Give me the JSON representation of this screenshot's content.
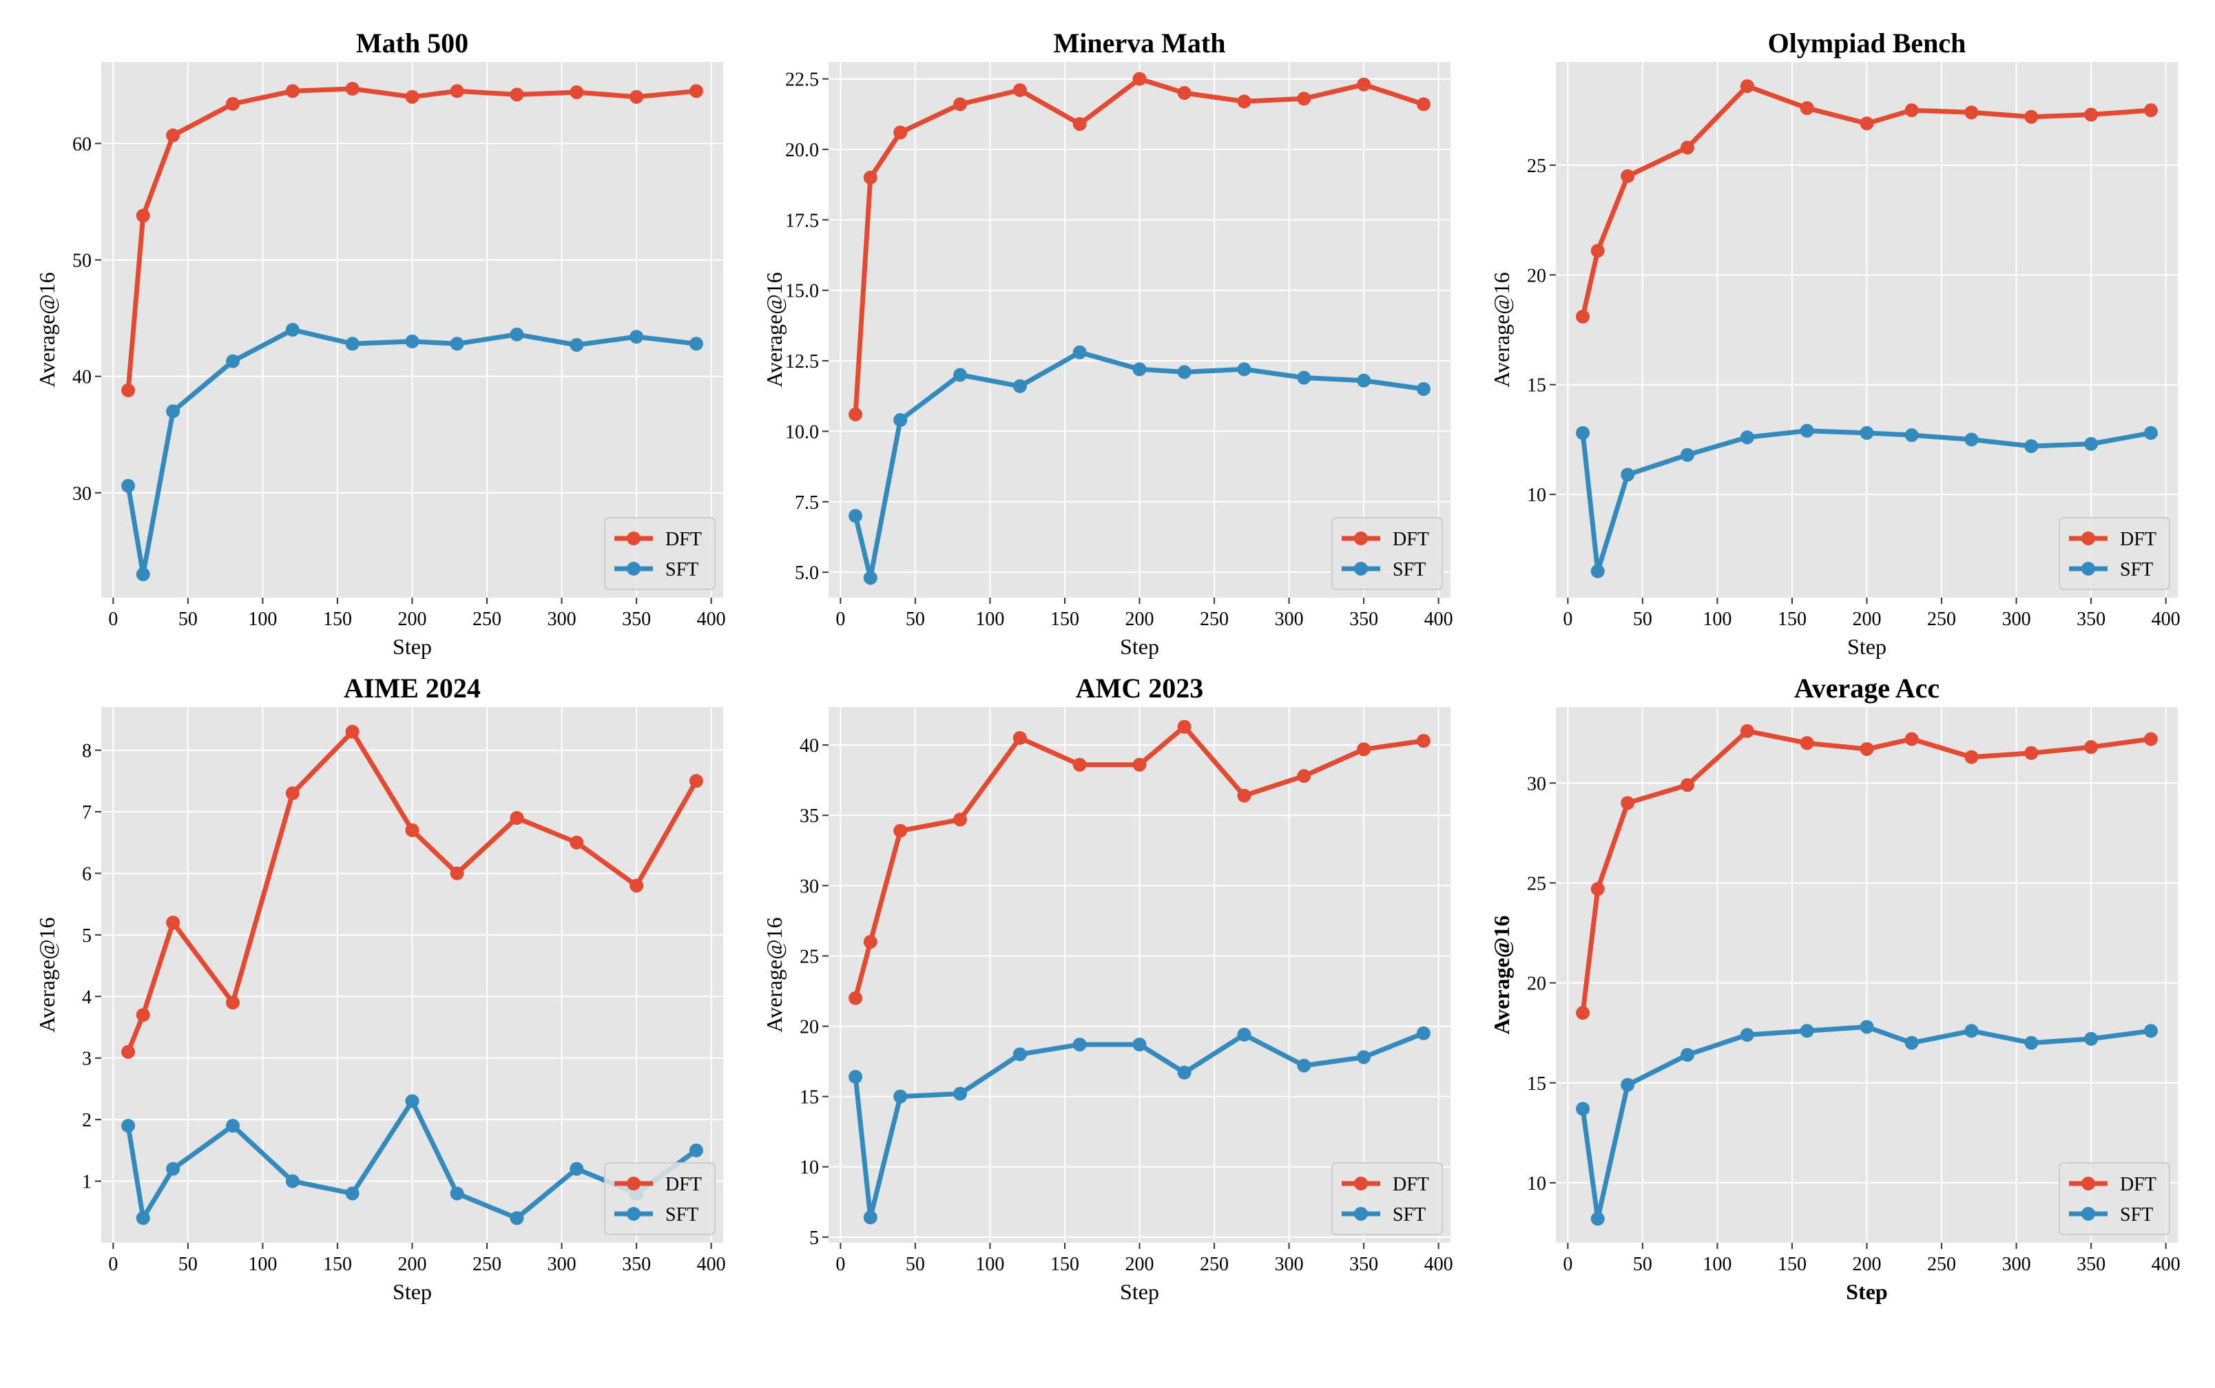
{
  "chart_data": [
    {
      "type": "line",
      "title": "Math 500",
      "xlabel": "Step",
      "ylabel": "Average@16",
      "xlim": [
        -8,
        408
      ],
      "ylim": [
        21,
        67
      ],
      "xticks": [
        0,
        50,
        100,
        150,
        200,
        250,
        300,
        350,
        400
      ],
      "yticks": [
        30,
        40,
        50,
        60
      ],
      "ytick_labels": [
        "30",
        "40",
        "50",
        "60"
      ],
      "grid": true,
      "legend_position": "lower-right",
      "bold_axis_labels": false,
      "x": [
        10,
        20,
        40,
        80,
        120,
        160,
        200,
        230,
        270,
        310,
        350,
        390
      ],
      "series": [
        {
          "name": "DFT",
          "color": "#E24A33",
          "values": [
            38.8,
            53.8,
            60.7,
            63.4,
            64.5,
            64.7,
            64.0,
            64.5,
            64.2,
            64.4,
            64.0,
            64.5
          ]
        },
        {
          "name": "SFT",
          "color": "#348ABD",
          "values": [
            30.6,
            23.0,
            37.0,
            41.3,
            44.0,
            42.8,
            43.0,
            42.8,
            43.6,
            42.7,
            43.4,
            42.8
          ]
        }
      ]
    },
    {
      "type": "line",
      "title": "Minerva Math",
      "xlabel": "Step",
      "ylabel": "Average@16",
      "xlim": [
        -8,
        408
      ],
      "ylim": [
        4.1,
        23.1
      ],
      "xticks": [
        0,
        50,
        100,
        150,
        200,
        250,
        300,
        350,
        400
      ],
      "yticks": [
        5.0,
        7.5,
        10.0,
        12.5,
        15.0,
        17.5,
        20.0,
        22.5
      ],
      "ytick_labels": [
        "5.0",
        "7.5",
        "10.0",
        "12.5",
        "15.0",
        "17.5",
        "20.0",
        "22.5"
      ],
      "grid": true,
      "legend_position": "lower-right",
      "bold_axis_labels": false,
      "x": [
        10,
        20,
        40,
        80,
        120,
        160,
        200,
        230,
        270,
        310,
        350,
        390
      ],
      "series": [
        {
          "name": "DFT",
          "color": "#E24A33",
          "values": [
            10.6,
            19.0,
            20.6,
            21.6,
            22.1,
            20.9,
            22.5,
            22.0,
            21.7,
            21.8,
            22.3,
            21.6
          ]
        },
        {
          "name": "SFT",
          "color": "#348ABD",
          "values": [
            7.0,
            4.8,
            10.4,
            12.0,
            11.6,
            12.8,
            12.2,
            12.1,
            12.2,
            11.9,
            11.8,
            11.5
          ]
        }
      ]
    },
    {
      "type": "line",
      "title": "Olympiad Bench",
      "xlabel": "Step",
      "ylabel": "Average@16",
      "xlim": [
        -8,
        408
      ],
      "ylim": [
        5.3,
        29.7
      ],
      "xticks": [
        0,
        50,
        100,
        150,
        200,
        250,
        300,
        350,
        400
      ],
      "yticks": [
        10,
        15,
        20,
        25
      ],
      "ytick_labels": [
        "10",
        "15",
        "20",
        "25"
      ],
      "grid": true,
      "legend_position": "lower-right",
      "bold_axis_labels": false,
      "x": [
        10,
        20,
        40,
        80,
        120,
        160,
        200,
        230,
        270,
        310,
        350,
        390
      ],
      "series": [
        {
          "name": "DFT",
          "color": "#E24A33",
          "values": [
            18.1,
            21.1,
            24.5,
            25.8,
            28.6,
            27.6,
            26.9,
            27.5,
            27.4,
            27.2,
            27.3,
            27.5
          ]
        },
        {
          "name": "SFT",
          "color": "#348ABD",
          "values": [
            12.8,
            6.5,
            10.9,
            11.8,
            12.6,
            12.9,
            12.8,
            12.7,
            12.5,
            12.2,
            12.3,
            12.8
          ]
        }
      ]
    },
    {
      "type": "line",
      "title": "AIME 2024",
      "xlabel": "Step",
      "ylabel": "Average@16",
      "xlim": [
        -8,
        408
      ],
      "ylim": [
        0.0,
        8.7
      ],
      "xticks": [
        0,
        50,
        100,
        150,
        200,
        250,
        300,
        350,
        400
      ],
      "yticks": [
        1,
        2,
        3,
        4,
        5,
        6,
        7,
        8
      ],
      "ytick_labels": [
        "1",
        "2",
        "3",
        "4",
        "5",
        "6",
        "7",
        "8"
      ],
      "grid": true,
      "legend_position": "lower-right",
      "bold_axis_labels": false,
      "x": [
        10,
        20,
        40,
        80,
        120,
        160,
        200,
        230,
        270,
        310,
        350,
        390
      ],
      "series": [
        {
          "name": "DFT",
          "color": "#E24A33",
          "values": [
            3.1,
            3.7,
            5.2,
            3.9,
            7.3,
            8.3,
            6.7,
            6.0,
            6.9,
            6.5,
            5.8,
            7.5
          ]
        },
        {
          "name": "SFT",
          "color": "#348ABD",
          "values": [
            1.9,
            0.4,
            1.2,
            1.9,
            1.0,
            0.8,
            2.3,
            0.8,
            0.4,
            1.2,
            0.8,
            1.5
          ]
        }
      ]
    },
    {
      "type": "line",
      "title": "AMC 2023",
      "xlabel": "Step",
      "ylabel": "Average@16",
      "xlim": [
        -8,
        408
      ],
      "ylim": [
        4.6,
        42.7
      ],
      "xticks": [
        0,
        50,
        100,
        150,
        200,
        250,
        300,
        350,
        400
      ],
      "yticks": [
        5,
        10,
        15,
        20,
        25,
        30,
        35,
        40
      ],
      "ytick_labels": [
        "5",
        "10",
        "15",
        "20",
        "25",
        "30",
        "35",
        "40"
      ],
      "grid": true,
      "legend_position": "lower-right",
      "bold_axis_labels": false,
      "x": [
        10,
        20,
        40,
        80,
        120,
        160,
        200,
        230,
        270,
        310,
        350,
        390
      ],
      "series": [
        {
          "name": "DFT",
          "color": "#E24A33",
          "values": [
            22.0,
            26.0,
            33.9,
            34.7,
            40.5,
            38.6,
            38.6,
            41.3,
            36.4,
            37.8,
            39.7,
            40.3
          ]
        },
        {
          "name": "SFT",
          "color": "#348ABD",
          "values": [
            16.4,
            6.4,
            15.0,
            15.2,
            18.0,
            18.7,
            18.7,
            16.7,
            19.4,
            17.2,
            17.8,
            19.5
          ]
        }
      ]
    },
    {
      "type": "line",
      "title": "Average Acc",
      "xlabel": "Step",
      "ylabel": "Average@16",
      "xlim": [
        -8,
        408
      ],
      "ylim": [
        7.0,
        33.8
      ],
      "xticks": [
        0,
        50,
        100,
        150,
        200,
        250,
        300,
        350,
        400
      ],
      "yticks": [
        10,
        15,
        20,
        25,
        30
      ],
      "ytick_labels": [
        "10",
        "15",
        "20",
        "25",
        "30"
      ],
      "grid": true,
      "legend_position": "lower-right",
      "bold_axis_labels": true,
      "x": [
        10,
        20,
        40,
        80,
        120,
        160,
        200,
        230,
        270,
        310,
        350,
        390
      ],
      "series": [
        {
          "name": "DFT",
          "color": "#E24A33",
          "values": [
            18.5,
            24.7,
            29.0,
            29.9,
            32.6,
            32.0,
            31.7,
            32.2,
            31.3,
            31.5,
            31.8,
            32.2
          ]
        },
        {
          "name": "SFT",
          "color": "#348ABD",
          "values": [
            13.7,
            8.2,
            14.9,
            16.4,
            17.4,
            17.6,
            17.8,
            17.0,
            17.6,
            17.0,
            17.2,
            17.6
          ]
        }
      ]
    }
  ],
  "style": {
    "plot_background": "#E5E5E5",
    "grid_color": "#FFFFFF"
  }
}
